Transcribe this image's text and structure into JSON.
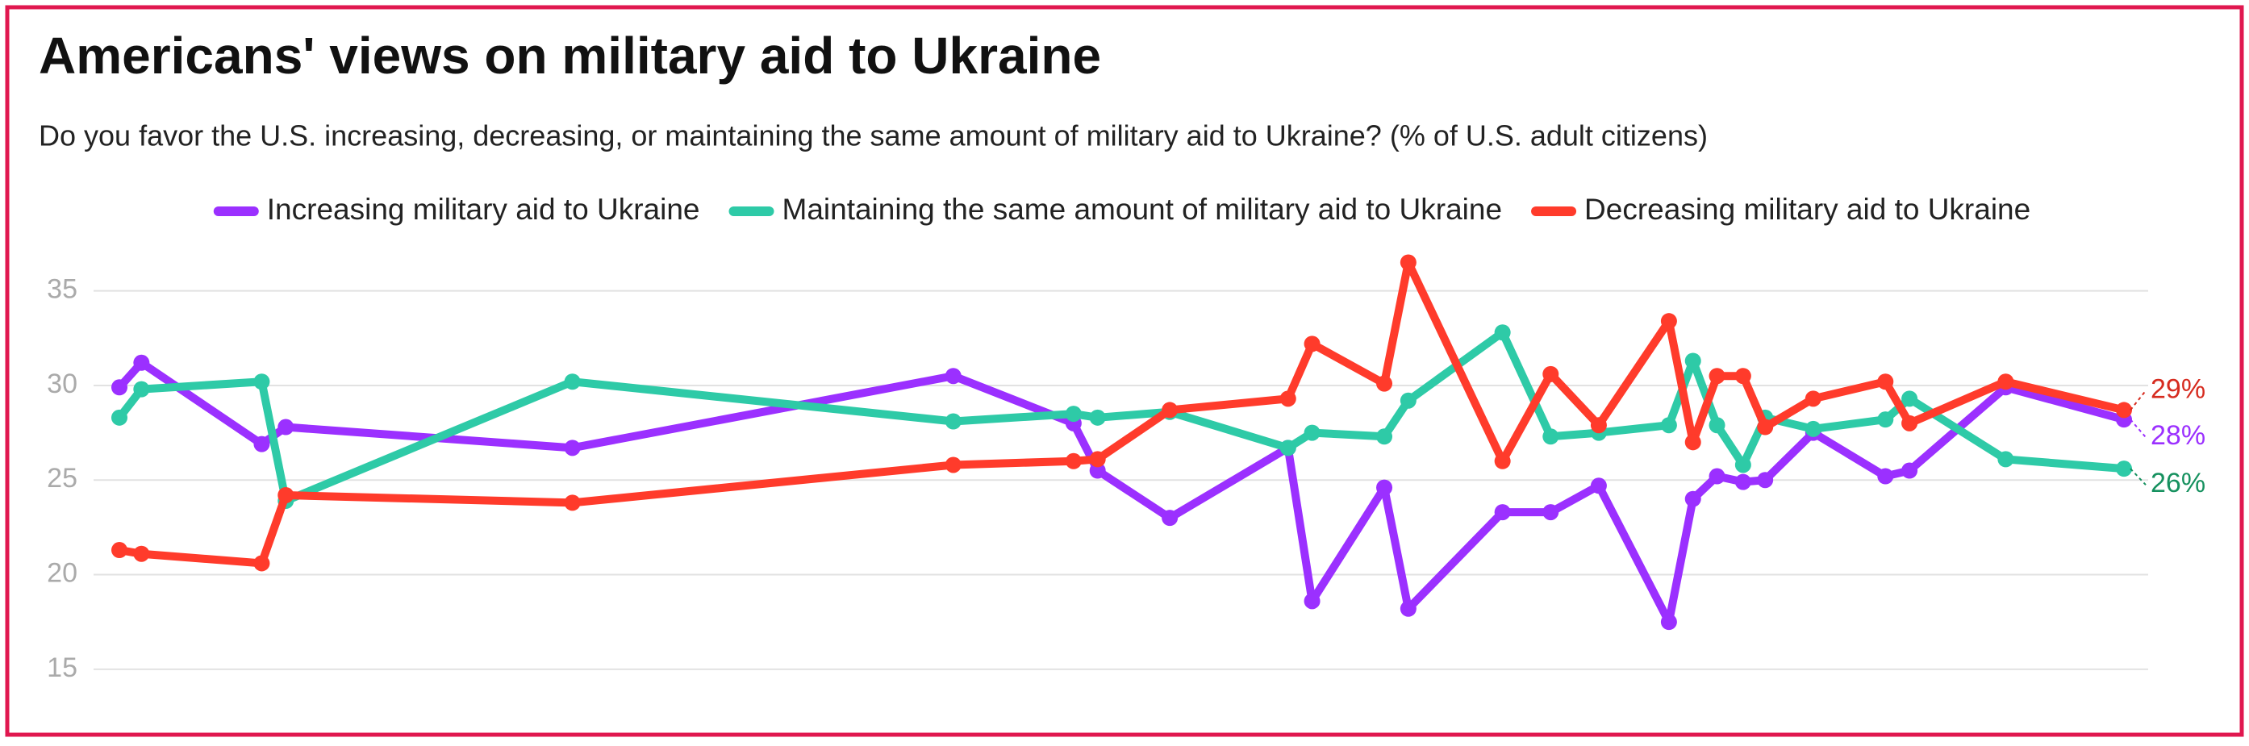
{
  "chart_data": {
    "type": "line",
    "title": "Americans' views on military aid to Ukraine",
    "subtitle": "Do you favor the U.S. increasing, decreasing, or maintaining the same amount of military aid to Ukraine? (% of U.S. adult citizens)",
    "x": [
      0,
      1.1,
      7.1,
      8.3,
      22.6,
      41.6,
      47.6,
      48.8,
      52.4,
      58.3,
      59.5,
      63.1,
      64.3,
      69.0,
      71.4,
      73.8,
      77.3,
      78.5,
      79.7,
      81.0,
      82.1,
      84.5,
      88.1,
      89.3,
      94.1,
      100
    ],
    "xlim": [
      0,
      100
    ],
    "ylim": [
      13.5,
      37.5
    ],
    "yticks": [
      15,
      20,
      25,
      30,
      35
    ],
    "grid": true,
    "legend": "top",
    "series": [
      {
        "name": "Increasing military aid to Ukraine",
        "color": "#9b30ff",
        "label_color": "#9b30ff",
        "end_label": "28%",
        "values": [
          29.9,
          31.2,
          26.9,
          27.8,
          26.7,
          30.5,
          28.0,
          25.5,
          23.0,
          26.7,
          18.6,
          24.6,
          18.2,
          23.3,
          23.3,
          24.7,
          17.5,
          24.0,
          25.2,
          24.9,
          25.0,
          27.5,
          25.2,
          25.5,
          29.9,
          28.2
        ]
      },
      {
        "name": "Maintaining the same amount of military aid to Ukraine",
        "color": "#2ecaa7",
        "label_color": "#16915f",
        "end_label": "26%",
        "values": [
          28.3,
          29.8,
          30.2,
          23.9,
          30.2,
          28.1,
          28.5,
          28.3,
          28.6,
          26.7,
          27.5,
          27.3,
          29.2,
          32.8,
          27.3,
          27.5,
          27.9,
          31.3,
          27.9,
          25.8,
          28.3,
          27.7,
          28.2,
          29.3,
          26.1,
          25.6
        ]
      },
      {
        "name": "Decreasing military aid to Ukraine",
        "color": "#ff3b2b",
        "label_color": "#d62b1f",
        "end_label": "29%",
        "values": [
          21.3,
          21.1,
          20.6,
          24.2,
          23.8,
          25.8,
          26.0,
          26.1,
          28.7,
          29.3,
          32.2,
          30.1,
          36.5,
          26.0,
          30.6,
          27.9,
          33.4,
          27.0,
          30.5,
          30.5,
          27.8,
          29.3,
          30.2,
          28.0,
          30.2,
          28.7
        ]
      }
    ]
  }
}
